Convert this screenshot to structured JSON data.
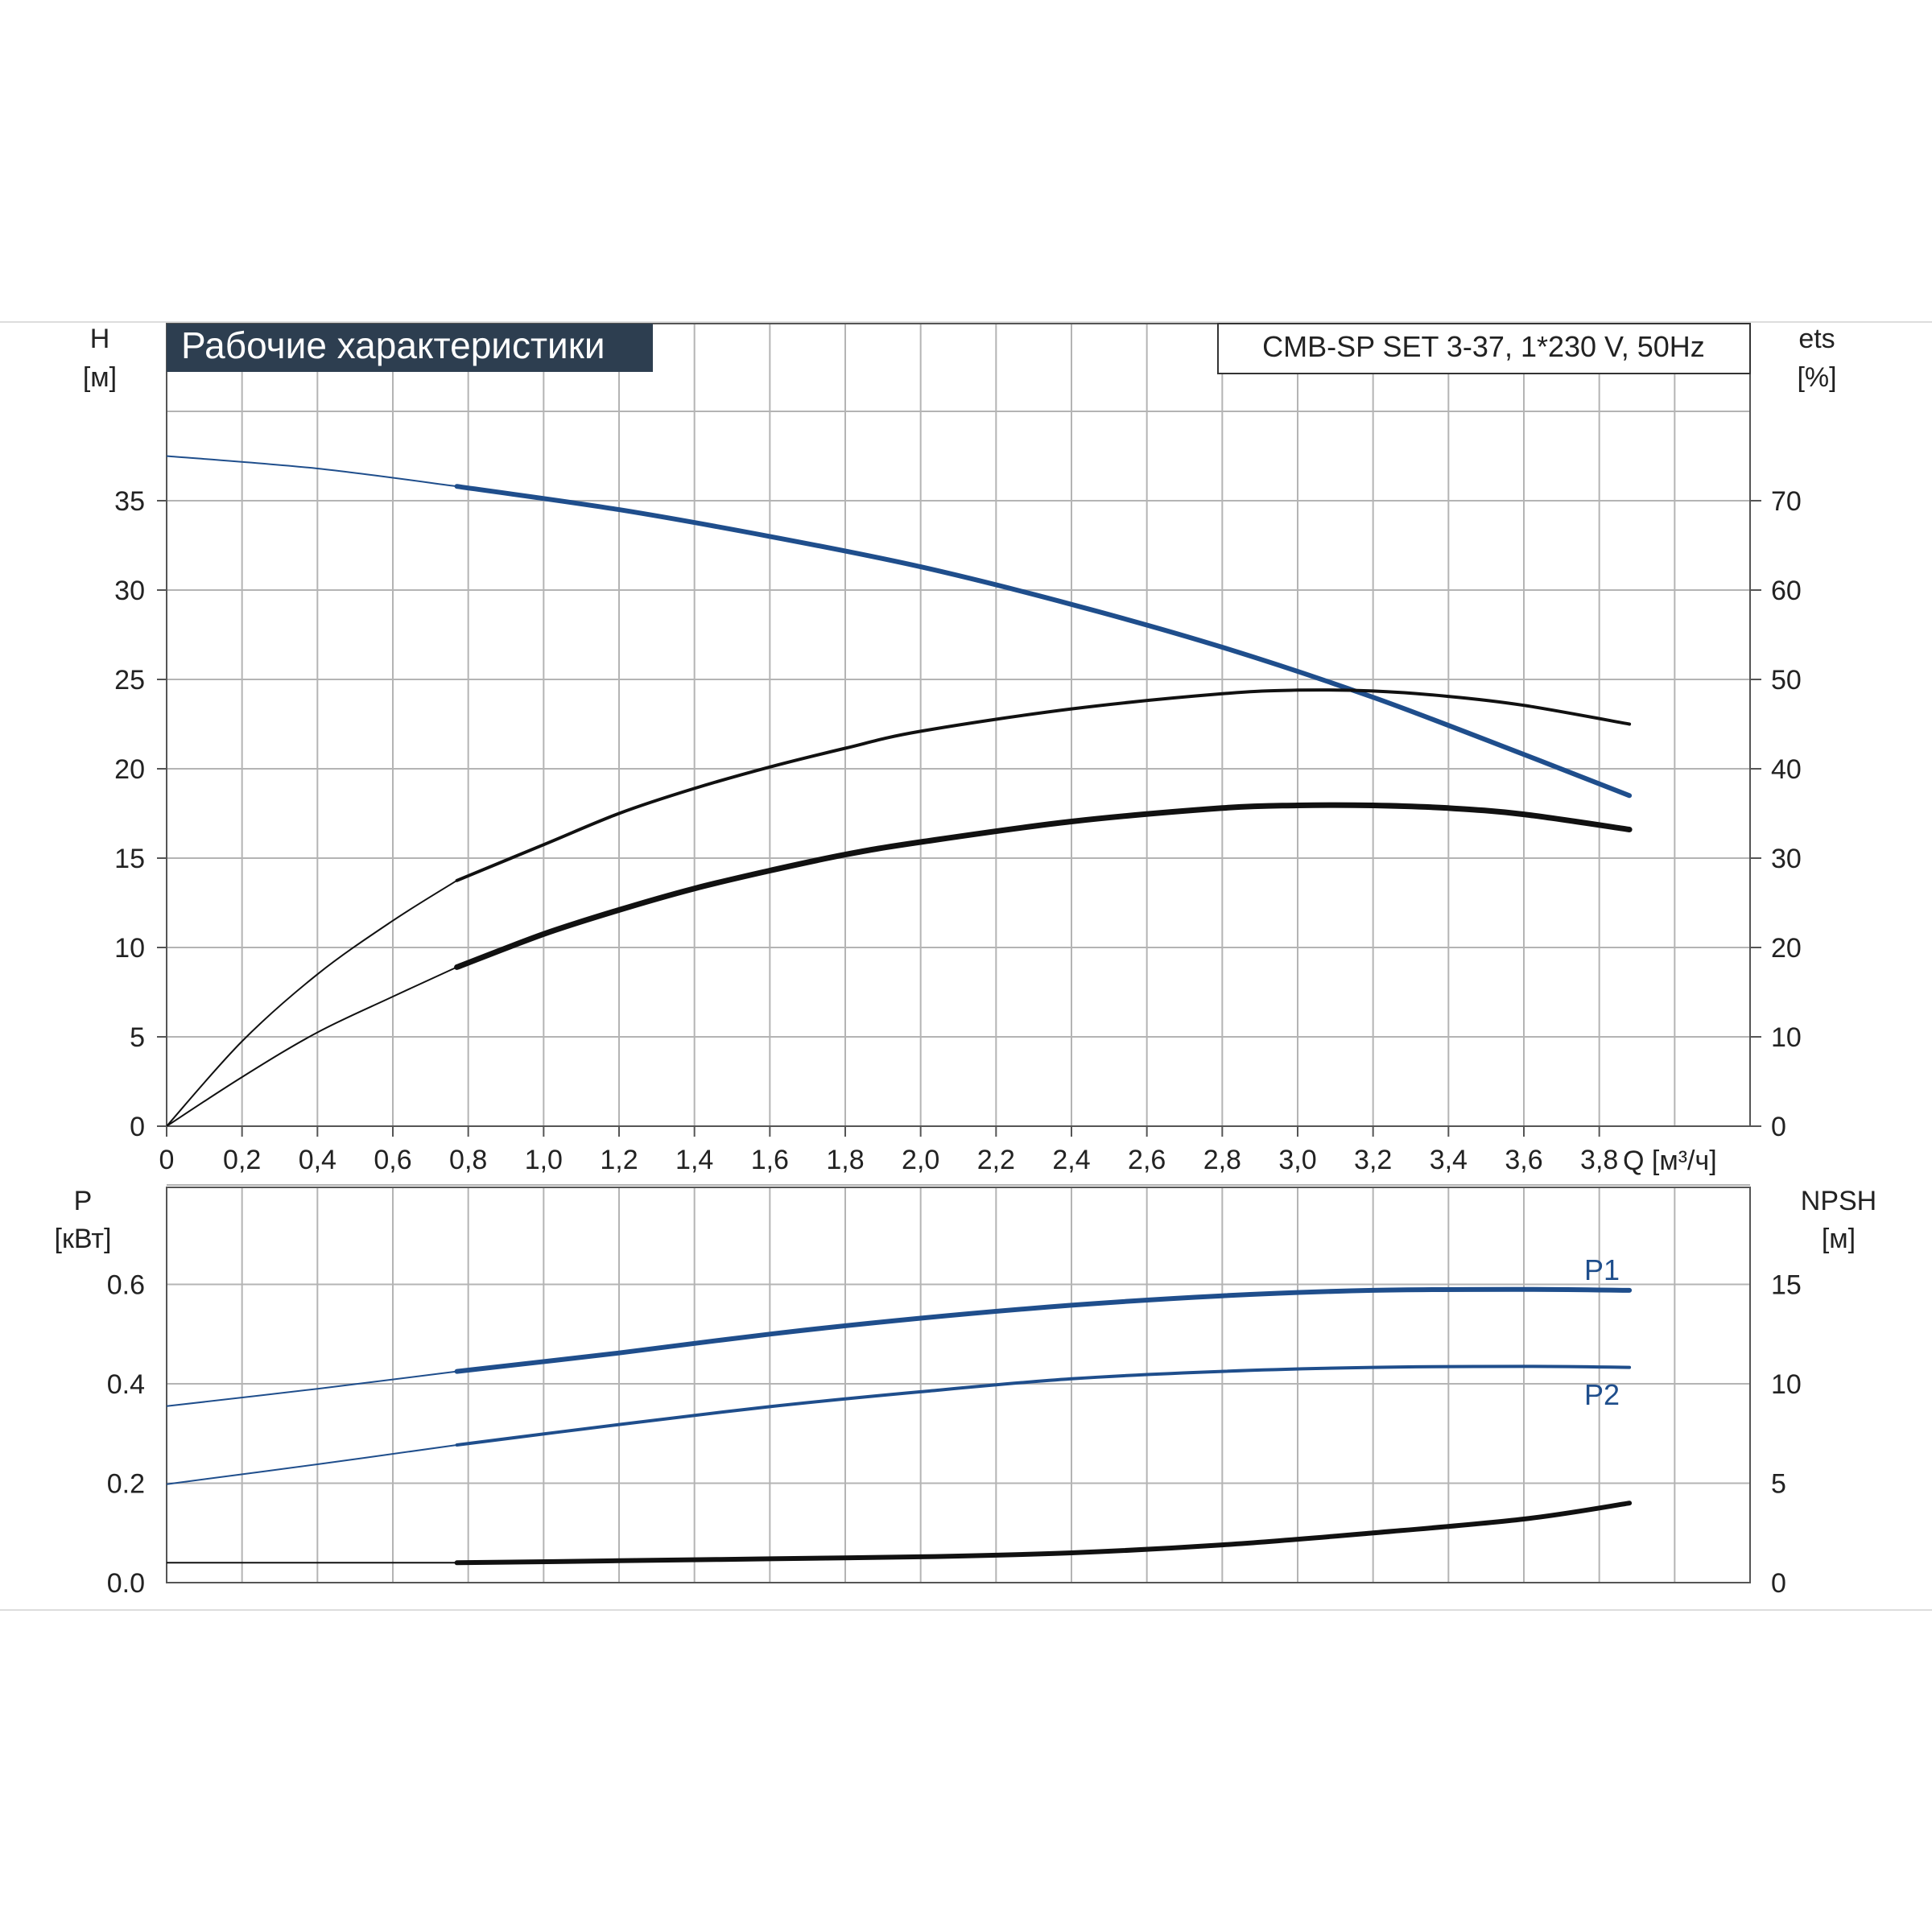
{
  "colors": {
    "blue": "#1f4e8c",
    "black": "#111111",
    "grid": "#b4b4b4",
    "title_bg": "#2d3e50",
    "title_text": "#ffffff"
  },
  "header": {
    "title": "Рабочие характеристики",
    "model": "CMB-SP SET 3-37, 1*230 V, 50Hz"
  },
  "chart_data": [
    {
      "type": "line",
      "panel": "top",
      "x_ticks": [
        "0",
        "0,2",
        "0,4",
        "0,6",
        "0,8",
        "1,0",
        "1,2",
        "1,4",
        "1,6",
        "1,8",
        "2,0",
        "2,2",
        "2,4",
        "2,6",
        "2,8",
        "3,0",
        "3,2",
        "3,4",
        "3,6",
        "3,8"
      ],
      "xlabel": "Q [м³/ч]",
      "xlim": [
        0,
        4.2
      ],
      "y_left": {
        "label": "H",
        "unit": "[м]",
        "lim": [
          0,
          40
        ],
        "ticks": [
          "0",
          "5",
          "10",
          "15",
          "20",
          "25",
          "30",
          "35"
        ]
      },
      "y_right": {
        "label": "ets",
        "unit": "[%]",
        "lim": [
          0,
          80
        ],
        "ticks": [
          "0",
          "10",
          "20",
          "30",
          "40",
          "50",
          "60",
          "70"
        ]
      },
      "grid": true,
      "series": [
        {
          "axis": "left",
          "color": "blue",
          "x": [
            0,
            0.4,
            0.77,
            1.2,
            1.6,
            2.0,
            2.4,
            2.8,
            3.2,
            3.6,
            3.88
          ],
          "values": [
            37.5,
            36.8,
            35.8,
            34.5,
            33.0,
            31.3,
            29.2,
            26.8,
            24.0,
            20.8,
            18.5
          ]
        },
        {
          "axis": "right",
          "color": "black",
          "x": [
            0,
            0.2,
            0.4,
            0.6,
            0.77,
            1.0,
            1.2,
            1.4,
            1.6,
            1.8,
            2.0,
            2.4,
            2.8,
            3.0,
            3.2,
            3.4,
            3.6,
            3.88
          ],
          "values": [
            0,
            9.5,
            17,
            23,
            27.5,
            31.5,
            35,
            37.8,
            40.2,
            42.3,
            44.2,
            46.7,
            48.4,
            48.8,
            48.7,
            48.1,
            47.1,
            45.0
          ]
        },
        {
          "axis": "right",
          "color": "black",
          "x": [
            0,
            0.2,
            0.4,
            0.6,
            0.77,
            1.0,
            1.2,
            1.4,
            1.6,
            1.8,
            2.0,
            2.4,
            2.8,
            3.0,
            3.2,
            3.4,
            3.6,
            3.88
          ],
          "values": [
            0,
            5.5,
            10.5,
            14.5,
            17.8,
            21.5,
            24.2,
            26.6,
            28.6,
            30.4,
            31.8,
            34.1,
            35.6,
            35.9,
            35.9,
            35.6,
            34.9,
            33.2
          ]
        }
      ]
    },
    {
      "type": "line",
      "panel": "bottom",
      "xlim": [
        0,
        4.2
      ],
      "y_left": {
        "label": "P",
        "unit": "[кВт]",
        "lim": [
          0,
          0.8
        ],
        "ticks": [
          "0.0",
          "0.2",
          "0.4",
          "0.6"
        ]
      },
      "y_right": {
        "label": "NPSH",
        "unit": "[м]",
        "lim": [
          0,
          20
        ],
        "ticks": [
          "0",
          "5",
          "10",
          "15"
        ]
      },
      "grid": true,
      "series": [
        {
          "name": "P1",
          "axis": "left",
          "color": "blue",
          "x": [
            0,
            0.4,
            0.77,
            1.2,
            1.6,
            2.0,
            2.4,
            2.8,
            3.2,
            3.6,
            3.88
          ],
          "values": [
            0.355,
            0.39,
            0.425,
            0.462,
            0.5,
            0.532,
            0.558,
            0.577,
            0.588,
            0.59,
            0.588
          ]
        },
        {
          "name": "P2",
          "axis": "left",
          "color": "blue",
          "x": [
            0,
            0.4,
            0.77,
            1.2,
            1.6,
            2.0,
            2.4,
            2.8,
            3.2,
            3.6,
            3.88
          ],
          "values": [
            0.198,
            0.238,
            0.277,
            0.318,
            0.354,
            0.384,
            0.41,
            0.425,
            0.433,
            0.435,
            0.433
          ]
        },
        {
          "axis": "right",
          "color": "black",
          "x": [
            0,
            0.77,
            1.2,
            1.6,
            2.0,
            2.4,
            2.8,
            3.2,
            3.6,
            3.88
          ],
          "values": [
            1.0,
            1.0,
            1.1,
            1.2,
            1.3,
            1.5,
            1.9,
            2.5,
            3.2,
            4.0
          ]
        }
      ]
    }
  ]
}
